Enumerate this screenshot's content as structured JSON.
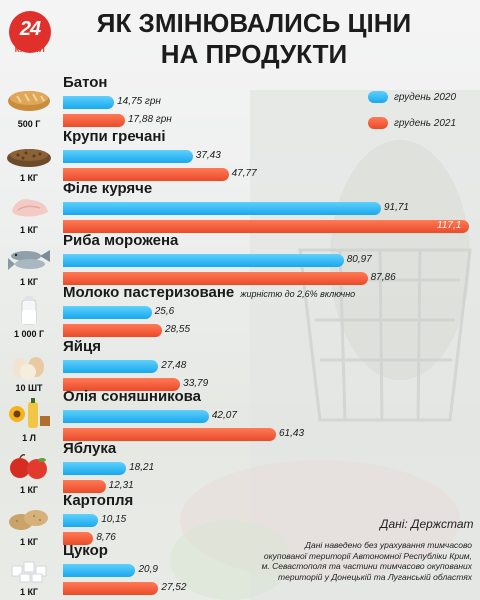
{
  "logo": {
    "number": "24",
    "text": "КАНАЛ"
  },
  "title_line1": "ЯК ЗМІНЮВАЛИСЬ ЦІНИ",
  "title_line2": "НА ПРОДУКТИ",
  "colors": {
    "y2020": "#1aa8ef",
    "y2021": "#ea4a2a",
    "logo": "#e0302b"
  },
  "chart_data": {
    "type": "bar",
    "orientation": "horizontal",
    "series": [
      {
        "name": "грудень 2020",
        "values": [
          14.75,
          37.43,
          91.71,
          80.97,
          25.6,
          27.48,
          42.07,
          18.21,
          10.15,
          20.9
        ]
      },
      {
        "name": "грудень 2021",
        "values": [
          17.88,
          47.77,
          117.1,
          87.86,
          28.55,
          33.79,
          61.43,
          12.31,
          8.76,
          27.52
        ]
      }
    ],
    "xlim": [
      0,
      117.1
    ]
  },
  "products": [
    {
      "name": "Батон",
      "note": "",
      "unit": "500 Г",
      "icon": "bread-icon",
      "v2020": 14.75,
      "v2021": 17.88,
      "l2020": "14,75 грн",
      "l2021": "17,88 грн"
    },
    {
      "name": "Крупи гречані",
      "note": "",
      "unit": "1 КГ",
      "icon": "buckwheat-icon",
      "v2020": 37.43,
      "v2021": 47.77,
      "l2020": "37,43",
      "l2021": "47,77"
    },
    {
      "name": "Філе куряче",
      "note": "",
      "unit": "1 КГ",
      "icon": "chicken-fillet-icon",
      "v2020": 91.71,
      "v2021": 117.1,
      "l2020": "91,71",
      "l2021": "117,1"
    },
    {
      "name": "Риба морожена",
      "note": "",
      "unit": "1 КГ",
      "icon": "fish-icon",
      "v2020": 80.97,
      "v2021": 87.86,
      "l2020": "80,97",
      "l2021": "87,86"
    },
    {
      "name": "Молоко пастеризоване",
      "note": "жирністю до 2,6% включно",
      "unit": "1 000 Г",
      "icon": "milk-icon",
      "v2020": 25.6,
      "v2021": 28.55,
      "l2020": "25,6",
      "l2021": "28,55"
    },
    {
      "name": "Яйця",
      "note": "",
      "unit": "10 ШТ",
      "icon": "eggs-icon",
      "v2020": 27.48,
      "v2021": 33.79,
      "l2020": "27,48",
      "l2021": "33,79"
    },
    {
      "name": "Олія соняшникова",
      "note": "",
      "unit": "1 Л",
      "icon": "oil-icon",
      "v2020": 42.07,
      "v2021": 61.43,
      "l2020": "42,07",
      "l2021": "61,43"
    },
    {
      "name": "Яблука",
      "note": "",
      "unit": "1 КГ",
      "icon": "apples-icon",
      "v2020": 18.21,
      "v2021": 12.31,
      "l2020": "18,21",
      "l2021": "12,31"
    },
    {
      "name": "Картопля",
      "note": "",
      "unit": "1 КГ",
      "icon": "potatoes-icon",
      "v2020": 10.15,
      "v2021": 8.76,
      "l2020": "10,15",
      "l2021": "8,76"
    },
    {
      "name": "Цукор",
      "note": "",
      "unit": "1 КГ",
      "icon": "sugar-icon",
      "v2020": 20.9,
      "v2021": 27.52,
      "l2020": "20,9",
      "l2021": "27,52"
    }
  ],
  "source": "Дані: Держстат",
  "note_lines": [
    "Дані наведено без урахування тимчасово",
    "окупованої території Автономної Республіки Крим,",
    "м. Севастополя та частини тимчасово окупованих",
    "територій у Донецькій та Луганській областях"
  ]
}
